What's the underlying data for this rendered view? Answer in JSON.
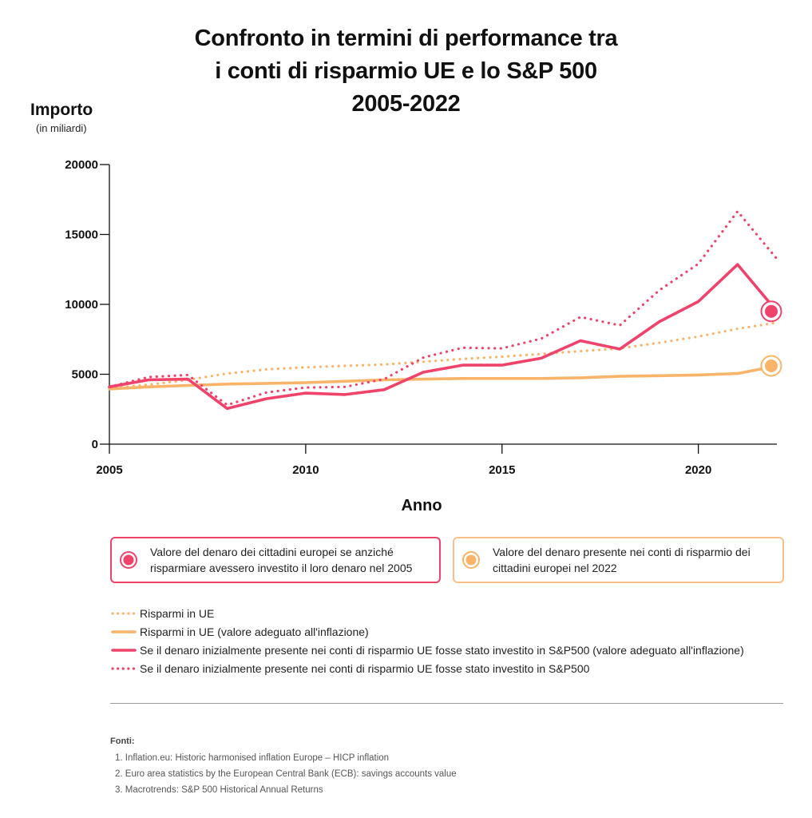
{
  "title": {
    "line1": "Confronto in termini di performance tra",
    "line2": "i conti di risparmio UE e lo S&P 500",
    "line3": "2005-2022"
  },
  "chart_data": {
    "type": "line",
    "ylabel": "Importo",
    "yunit": "(in miliardi)",
    "xlabel": "Anno",
    "ylim": [
      0,
      20000
    ],
    "yticks": [
      0,
      5000,
      10000,
      15000,
      20000
    ],
    "xlim": [
      2005,
      2022
    ],
    "xticks": [
      2005,
      2010,
      2015,
      2020
    ],
    "grid": false,
    "colors": {
      "pink": "#f0436b",
      "orange": "#f9b46a",
      "orange_light": "#fbd1a8"
    },
    "x": [
      2005,
      2006,
      2007,
      2008,
      2009,
      2010,
      2011,
      2012,
      2013,
      2014,
      2015,
      2016,
      2017,
      2018,
      2019,
      2020,
      2021,
      2022
    ],
    "series": [
      {
        "name": "Risparmi in UE",
        "style": "dotted",
        "color": "#f9b46a",
        "values": [
          4000,
          4250,
          4600,
          5050,
          5350,
          5500,
          5600,
          5700,
          5900,
          6100,
          6250,
          6450,
          6650,
          6850,
          7250,
          7700,
          8250,
          8700
        ]
      },
      {
        "name": "Risparmi in UE (valore adeguato all'inflazione)",
        "style": "solid",
        "color": "#f9b46a",
        "values": [
          3950,
          4100,
          4200,
          4300,
          4350,
          4400,
          4500,
          4600,
          4650,
          4700,
          4700,
          4700,
          4750,
          4850,
          4900,
          4950,
          5050,
          5600
        ]
      },
      {
        "name": "Se il denaro inizialmente presente nei conti di risparmio UE fosse stato investito in S&P500 (valore adeguato all'inflazione)",
        "style": "solid",
        "color": "#f0436b",
        "values": [
          4100,
          4600,
          4650,
          2550,
          3250,
          3650,
          3550,
          3900,
          5150,
          5650,
          5650,
          6150,
          7400,
          6800,
          8750,
          10200,
          12850,
          9500
        ]
      },
      {
        "name": "Se il denaro inizialmente presente nei conti di risparmio UE fosse stato investito in S&P500",
        "style": "dotted",
        "color": "#f0436b",
        "values": [
          4100,
          4800,
          4950,
          2800,
          3700,
          4050,
          4100,
          4650,
          6200,
          6900,
          6850,
          7550,
          9100,
          8500,
          11000,
          12900,
          16650,
          13250
        ]
      }
    ],
    "highlight_labels": {
      "pink": "Valore del denaro dei cittadini europei se anziché risparmiare avessero investito il loro denaro nel 2005",
      "orange": "Valore del denaro presente nei conti di risparmio dei cittadini europei nel 2022"
    }
  },
  "sources": {
    "title": "Fonti:",
    "items": [
      "1. Inflation.eu: Historic harmonised inflation Europe – HICP inflation",
      "2. Euro area statistics by the European Central Bank (ECB): savings accounts value",
      "3. Macrotrends: S&P 500 Historical Annual Returns"
    ]
  }
}
